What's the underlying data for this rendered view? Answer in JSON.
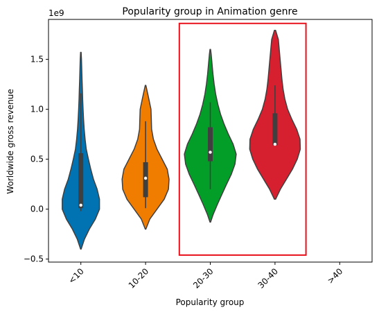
{
  "chart_data": {
    "type": "violin",
    "title": "Popularity group in Animation genre",
    "xlabel": "Popularity group",
    "ylabel": "Worldwide gross revenue",
    "y_scale_label": "1e9",
    "categories": [
      "<10",
      "10-20",
      "20-30",
      "30-40",
      ">40"
    ],
    "yticks": [
      -0.5,
      0.0,
      0.5,
      1.0,
      1.5
    ],
    "ytick_labels": [
      "−0.5",
      "0.0",
      "0.5",
      "1.0",
      "1.5"
    ],
    "ylim": [
      -0.53,
      1.9
    ],
    "grid": false,
    "colors": [
      "#0173b2",
      "#f07c00",
      "#029e27",
      "#d62030",
      null
    ],
    "violins": [
      {
        "category": "<10",
        "min": -0.4,
        "max": 1.57,
        "q1": 0.01,
        "median": 0.04,
        "q3": 0.56,
        "whisker_low": -0.02,
        "whisker_high": 1.16,
        "profile": [
          [
            -0.4,
            0.005
          ],
          [
            -0.3,
            0.06
          ],
          [
            -0.2,
            0.14
          ],
          [
            -0.1,
            0.24
          ],
          [
            0.0,
            0.31
          ],
          [
            0.1,
            0.31
          ],
          [
            0.2,
            0.27
          ],
          [
            0.3,
            0.21
          ],
          [
            0.4,
            0.165
          ],
          [
            0.5,
            0.125
          ],
          [
            0.6,
            0.09
          ],
          [
            0.7,
            0.07
          ],
          [
            0.8,
            0.055
          ],
          [
            0.9,
            0.045
          ],
          [
            1.0,
            0.037
          ],
          [
            1.1,
            0.03
          ],
          [
            1.2,
            0.025
          ],
          [
            1.3,
            0.02
          ],
          [
            1.4,
            0.015
          ],
          [
            1.5,
            0.01
          ],
          [
            1.57,
            0.005
          ]
        ]
      },
      {
        "category": "10-20",
        "min": -0.2,
        "max": 1.24,
        "q1": 0.12,
        "median": 0.31,
        "q3": 0.47,
        "whisker_low": 0.01,
        "whisker_high": 0.88,
        "profile": [
          [
            -0.2,
            0.005
          ],
          [
            -0.1,
            0.07
          ],
          [
            0.0,
            0.19
          ],
          [
            0.1,
            0.31
          ],
          [
            0.2,
            0.38
          ],
          [
            0.3,
            0.39
          ],
          [
            0.4,
            0.36
          ],
          [
            0.5,
            0.275
          ],
          [
            0.6,
            0.19
          ],
          [
            0.7,
            0.13
          ],
          [
            0.8,
            0.1
          ],
          [
            0.9,
            0.095
          ],
          [
            1.0,
            0.09
          ],
          [
            1.1,
            0.055
          ],
          [
            1.2,
            0.02
          ],
          [
            1.24,
            0.005
          ]
        ]
      },
      {
        "category": "20-30",
        "min": -0.13,
        "max": 1.6,
        "q1": 0.48,
        "median": 0.57,
        "q3": 0.82,
        "whisker_low": 0.2,
        "whisker_high": 1.07,
        "profile": [
          [
            -0.13,
            0.005
          ],
          [
            -0.05,
            0.05
          ],
          [
            0.05,
            0.12
          ],
          [
            0.15,
            0.195
          ],
          [
            0.25,
            0.27
          ],
          [
            0.35,
            0.35
          ],
          [
            0.45,
            0.41
          ],
          [
            0.55,
            0.43
          ],
          [
            0.65,
            0.38
          ],
          [
            0.75,
            0.3
          ],
          [
            0.85,
            0.23
          ],
          [
            0.95,
            0.17
          ],
          [
            1.05,
            0.125
          ],
          [
            1.15,
            0.09
          ],
          [
            1.25,
            0.065
          ],
          [
            1.35,
            0.045
          ],
          [
            1.45,
            0.03
          ],
          [
            1.55,
            0.015
          ],
          [
            1.6,
            0.005
          ]
        ]
      },
      {
        "category": "30-40",
        "min": 0.1,
        "max": 1.79,
        "q1": 0.64,
        "median": 0.65,
        "q3": 0.96,
        "whisker_low": 0.64,
        "whisker_high": 1.24,
        "profile": [
          [
            0.1,
            0.01
          ],
          [
            0.2,
            0.09
          ],
          [
            0.3,
            0.19
          ],
          [
            0.4,
            0.29
          ],
          [
            0.5,
            0.37
          ],
          [
            0.6,
            0.42
          ],
          [
            0.7,
            0.415
          ],
          [
            0.8,
            0.36
          ],
          [
            0.9,
            0.28
          ],
          [
            1.0,
            0.21
          ],
          [
            1.1,
            0.165
          ],
          [
            1.2,
            0.135
          ],
          [
            1.3,
            0.115
          ],
          [
            1.4,
            0.1
          ],
          [
            1.5,
            0.085
          ],
          [
            1.6,
            0.07
          ],
          [
            1.7,
            0.055
          ],
          [
            1.79,
            0.01
          ]
        ]
      }
    ],
    "highlight": {
      "color": "#e8101a",
      "from_category": "20-30",
      "to_category": "30-40",
      "y_range": [
        -0.46,
        1.86
      ]
    }
  }
}
